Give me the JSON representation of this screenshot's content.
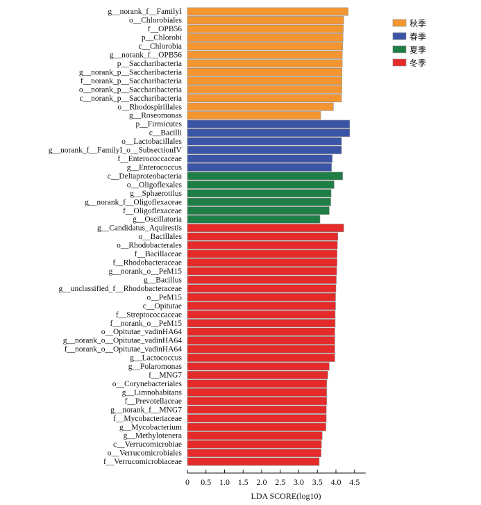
{
  "chart_data": {
    "type": "bar",
    "orientation": "horizontal",
    "xlabel": "LDA SCORE(log10)",
    "xlim": [
      0,
      4.5
    ],
    "xticks": [
      "0",
      "0.5",
      "1.0",
      "1.5",
      "2.0",
      "2.5",
      "3.0",
      "3.5",
      "4.0",
      "4.5"
    ],
    "grid": false,
    "legend_position": "top-right",
    "series": [
      {
        "name": "秋季",
        "color": "#f39530"
      },
      {
        "name": "春季",
        "color": "#3b55a6"
      },
      {
        "name": "夏季",
        "color": "#1e7e45"
      },
      {
        "name": "冬季",
        "color": "#e52a2a"
      }
    ],
    "categories": [
      "g__norank_f__FamilyI",
      "o__Chlorobiales",
      "f__OPB56",
      "p__Chlorobi",
      "c__Chlorobia",
      "g__norank_f__OPB56",
      "p__Saccharibacteria",
      "g__norank_p__Saccharibacteria",
      "f__norank_p__Saccharibacteria",
      "o__norank_p__Saccharibacteria",
      "c__norank_p__Saccharibacteria",
      "o__Rhodospirillales",
      "g__Roseomonas",
      "p__Firmicutes",
      "c__Bacilli",
      "o__Lactobacillales",
      "g__norank_f__FamilyI_o__SubsectionIV",
      "f__Enterococcaceae",
      "g__Enterococcus",
      "c__Deltaproteobacteria",
      "o__Oligoflexales",
      "g__Sphaerotilus",
      "g__norank_f__Oligoflexaceae",
      "f__Oligoflexaceae",
      "g__Oscillatoria",
      "g__Candidatus_Aquirestis",
      "o__Bacillales",
      "o__Rhodobacterales",
      "f__Bacillaceae",
      "f__Rhodobacteraceae",
      "g__norank_o__PeM15",
      "g__Bacillus",
      "g__unclassified_f__Rhodobacteraceae",
      "o__PeM15",
      "c__Opitutae",
      "f__Streptococcaceae",
      "f__norank_o__PeM15",
      "o__Opitutae_vadinHA64",
      "g__norank_o__Opitutae_vadinHA64",
      "f__norank_o__Opitutae_vadinHA64",
      "g__Lactococcus",
      "g__Polaromonas",
      "f__MNG7",
      "o__Corynebacteriales",
      "g__Limnohabitans",
      "f__Prevotellaceae",
      "g__norank_f__MNG7",
      "f__Mycobacteriaceae",
      "g__Mycobacterium",
      "g__Methylotenera",
      "c__Verrucomicrobiae",
      "o__Verrucomicrobiales",
      "f__Verrucomicrobiaceae"
    ],
    "values": [
      4.33,
      4.21,
      4.2,
      4.19,
      4.18,
      4.17,
      4.17,
      4.16,
      4.16,
      4.16,
      4.15,
      3.93,
      3.59,
      4.37,
      4.37,
      4.15,
      4.15,
      3.9,
      3.88,
      4.18,
      3.95,
      3.87,
      3.86,
      3.82,
      3.57,
      4.21,
      4.05,
      4.04,
      4.03,
      4.03,
      4.02,
      4.01,
      4.0,
      3.99,
      3.99,
      3.98,
      3.98,
      3.97,
      3.97,
      3.97,
      3.97,
      3.82,
      3.78,
      3.75,
      3.75,
      3.75,
      3.74,
      3.74,
      3.73,
      3.63,
      3.61,
      3.6,
      3.55
    ],
    "groups": [
      "秋季",
      "秋季",
      "秋季",
      "秋季",
      "秋季",
      "秋季",
      "秋季",
      "秋季",
      "秋季",
      "秋季",
      "秋季",
      "秋季",
      "秋季",
      "春季",
      "春季",
      "春季",
      "春季",
      "春季",
      "春季",
      "夏季",
      "夏季",
      "夏季",
      "夏季",
      "夏季",
      "夏季",
      "冬季",
      "冬季",
      "冬季",
      "冬季",
      "冬季",
      "冬季",
      "冬季",
      "冬季",
      "冬季",
      "冬季",
      "冬季",
      "冬季",
      "冬季",
      "冬季",
      "冬季",
      "冬季",
      "冬季",
      "冬季",
      "冬季",
      "冬季",
      "冬季",
      "冬季",
      "冬季",
      "冬季",
      "冬季",
      "冬季",
      "冬季",
      "冬季"
    ]
  }
}
